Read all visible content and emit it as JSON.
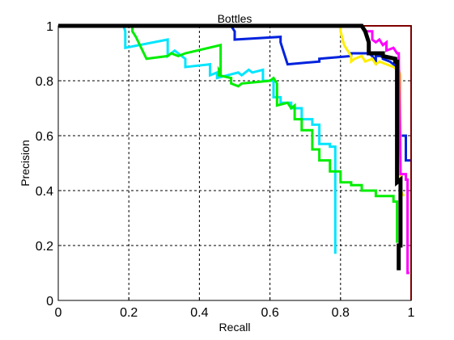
{
  "chart_data": {
    "type": "line",
    "title": "Bottles",
    "xlabel": "Recall",
    "ylabel": "Precision",
    "xlim": [
      0,
      1
    ],
    "ylim": [
      0,
      1
    ],
    "xticks": [
      0,
      0.2,
      0.4,
      0.6,
      0.8,
      1
    ],
    "yticks": [
      0,
      0.2,
      0.4,
      0.6,
      0.8,
      1
    ],
    "xtick_labels": [
      "0",
      "0.2",
      "0.4",
      "0.6",
      "0.8",
      "1"
    ],
    "ytick_labels": [
      "0",
      "0.2",
      "0.4",
      "0.6",
      "0.8",
      "1"
    ],
    "grid": true,
    "series": [
      {
        "color": "#00e5ff",
        "width": 3,
        "x": [
          0.0,
          0.185,
          0.19,
          0.19,
          0.31,
          0.31,
          0.33,
          0.34,
          0.36,
          0.36,
          0.43,
          0.43,
          0.45,
          0.45,
          0.51,
          0.52,
          0.54,
          0.55,
          0.58,
          0.58,
          0.61,
          0.61,
          0.63,
          0.63,
          0.66,
          0.66,
          0.69,
          0.69,
          0.72,
          0.72,
          0.74,
          0.74,
          0.77,
          0.77,
          0.785,
          0.785,
          0.785
        ],
        "y": [
          1.0,
          1.0,
          0.98,
          0.92,
          0.95,
          0.89,
          0.91,
          0.9,
          0.88,
          0.85,
          0.86,
          0.82,
          0.83,
          0.81,
          0.83,
          0.82,
          0.84,
          0.83,
          0.84,
          0.8,
          0.8,
          0.74,
          0.74,
          0.72,
          0.72,
          0.7,
          0.7,
          0.66,
          0.66,
          0.64,
          0.64,
          0.57,
          0.57,
          0.56,
          0.56,
          0.4,
          0.17
        ]
      },
      {
        "color": "#00ee00",
        "width": 3,
        "x": [
          0.0,
          0.21,
          0.21,
          0.22,
          0.25,
          0.31,
          0.32,
          0.34,
          0.36,
          0.46,
          0.46,
          0.455,
          0.455,
          0.49,
          0.49,
          0.51,
          0.52,
          0.6,
          0.61,
          0.62,
          0.62,
          0.65,
          0.66,
          0.67,
          0.67,
          0.69,
          0.69,
          0.72,
          0.72,
          0.74,
          0.74,
          0.77,
          0.77,
          0.8,
          0.8,
          0.83,
          0.83,
          0.86,
          0.86,
          0.9,
          0.9,
          0.95,
          0.95,
          0.96,
          0.96
        ],
        "y": [
          1.0,
          1.0,
          0.98,
          0.96,
          0.88,
          0.89,
          0.9,
          0.89,
          0.9,
          0.93,
          0.83,
          0.84,
          0.82,
          0.81,
          0.79,
          0.78,
          0.79,
          0.8,
          0.81,
          0.79,
          0.71,
          0.72,
          0.7,
          0.71,
          0.66,
          0.66,
          0.62,
          0.62,
          0.55,
          0.55,
          0.51,
          0.51,
          0.47,
          0.47,
          0.43,
          0.43,
          0.42,
          0.42,
          0.4,
          0.4,
          0.38,
          0.38,
          0.36,
          0.36,
          0.21
        ]
      },
      {
        "color": "#0022dd",
        "width": 3,
        "x": [
          0.04,
          0.49,
          0.5,
          0.5,
          0.63,
          0.63,
          0.64,
          0.65,
          0.74,
          0.74,
          0.83,
          0.83,
          0.88,
          0.89,
          0.9,
          0.9,
          0.92,
          0.92,
          0.94,
          0.95,
          0.96,
          0.96,
          0.985,
          0.985,
          1.0
        ],
        "y": [
          1.0,
          1.0,
          0.98,
          0.95,
          0.96,
          0.94,
          0.9,
          0.86,
          0.87,
          0.88,
          0.89,
          0.9,
          0.9,
          0.89,
          0.87,
          0.89,
          0.89,
          0.88,
          0.87,
          0.86,
          0.85,
          0.6,
          0.6,
          0.51,
          0.51
        ]
      },
      {
        "color": "#ffee00",
        "width": 3,
        "x": [
          0.0,
          0.8,
          0.8,
          0.81,
          0.83,
          0.83,
          0.84,
          0.86,
          0.87,
          0.89,
          0.9,
          0.91,
          0.93,
          0.95,
          0.96,
          0.965,
          0.97,
          0.97,
          0.98
        ],
        "y": [
          1.0,
          1.0,
          0.98,
          0.93,
          0.89,
          0.87,
          0.88,
          0.89,
          0.87,
          0.88,
          0.86,
          0.87,
          0.86,
          0.85,
          0.84,
          0.84,
          0.82,
          0.4,
          0.38
        ]
      },
      {
        "color": "#ff00ff",
        "width": 3,
        "x": [
          0.0,
          0.86,
          0.87,
          0.89,
          0.89,
          0.9,
          0.91,
          0.92,
          0.93,
          0.93,
          0.95,
          0.96,
          0.965,
          0.97,
          0.97,
          0.985,
          0.985,
          0.99,
          0.99,
          0.995
        ],
        "y": [
          1.0,
          1.0,
          0.98,
          0.98,
          0.95,
          0.94,
          0.95,
          0.93,
          0.94,
          0.91,
          0.92,
          0.9,
          0.9,
          0.48,
          0.46,
          0.46,
          0.44,
          0.44,
          0.1,
          0.1
        ]
      },
      {
        "color": "#ff0000",
        "width": 2,
        "x": [
          0.0,
          0.955,
          0.955,
          1.0,
          1.0
        ],
        "y": [
          1.0,
          1.0,
          1.0,
          1.0,
          0.0
        ]
      },
      {
        "color": "#000000",
        "width": 5,
        "x": [
          0.0,
          0.86,
          0.87,
          0.88,
          0.88,
          0.92,
          0.92,
          0.955,
          0.955,
          0.96,
          0.96,
          0.97,
          0.97,
          0.965,
          0.965
        ],
        "y": [
          1.0,
          1.0,
          0.98,
          0.94,
          0.9,
          0.9,
          0.89,
          0.88,
          0.87,
          0.87,
          0.43,
          0.44,
          0.2,
          0.2,
          0.11
        ]
      }
    ]
  }
}
